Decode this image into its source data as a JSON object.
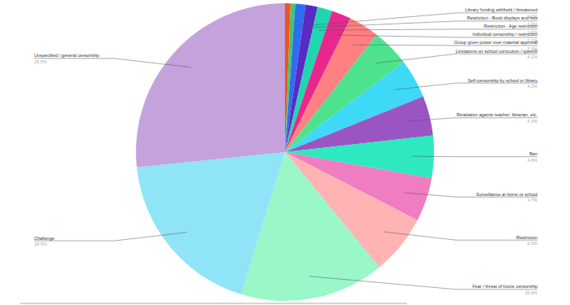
{
  "chart_data": {
    "type": "pie",
    "categories": [
      null,
      null,
      "Library funding withheld / threatened",
      "Restriction - Book displays and lists",
      "Restriction - Age restriction",
      "Individual censorship / restriction",
      "Group given power over material approval",
      "Limitations on school curriculum / speech",
      "Self-censorship by school or library",
      "Retaliation against teacher, librarian, etc.",
      "Ban",
      "Surveillance at home or school",
      "Restriction",
      "Fear / threat of future censorship",
      "Challenge",
      "Unspecified / general censorship"
    ],
    "values": [
      0.6,
      0.5,
      1.1,
      1.3,
      1.6,
      2.1,
      3.3,
      4.1,
      4.2,
      4.3,
      4.6,
      4.7,
      6.5,
      15.6,
      18.5,
      26.5
    ],
    "value_labels": [
      null,
      null,
      "1.1%",
      "1.3%",
      "1.6%",
      "2.1%",
      "3.3%",
      "4.1%",
      "4.2%",
      "4.3%",
      "4.6%",
      "4.7%",
      "6.5%",
      "15.6%",
      "18.5%",
      "26.5%"
    ],
    "colors": [
      "#f4511e",
      "#43c66a",
      "#2f6df0",
      "#5a2bc4",
      "#1fd6b0",
      "#e8288f",
      "#ff8080",
      "#4de38e",
      "#3dd9f7",
      "#9a55c2",
      "#2ee8c0",
      "#f07cc2",
      "#ffb3b3",
      "#99f7c8",
      "#8fe4f8",
      "#c4a2dc"
    ],
    "data_labels": true
  }
}
